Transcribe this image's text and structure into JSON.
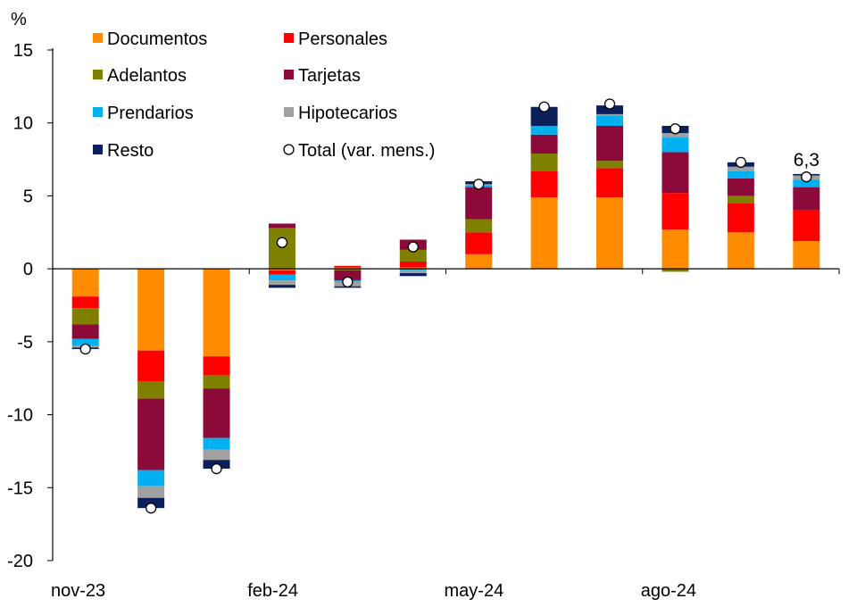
{
  "chart_data": {
    "type": "bar",
    "stacked": true,
    "ylabel": "%",
    "ylim": [
      -20,
      15
    ],
    "yticks": [
      "15",
      "10",
      "5",
      "0",
      "-5",
      "-10",
      "-15",
      "-20"
    ],
    "ytick_values": [
      15,
      10,
      5,
      0,
      -5,
      -10,
      -15,
      -20
    ],
    "categories": [
      "nov-23",
      "dic-23",
      "ene-24",
      "feb-24",
      "mar-24",
      "abr-24",
      "may-24",
      "jun-24",
      "jul-24",
      "ago-24",
      "sep-24",
      "oct-24"
    ],
    "xtick_labels": [
      {
        "index": 0,
        "label": "nov-23"
      },
      {
        "index": 3,
        "label": "feb-24"
      },
      {
        "index": 6,
        "label": "may-24"
      },
      {
        "index": 9,
        "label": "ago-24"
      }
    ],
    "series": [
      {
        "name": "Documentos",
        "color": "#FF8C00",
        "values": [
          -1.9,
          -5.6,
          -6.0,
          -0.1,
          0.1,
          0.1,
          1.0,
          4.9,
          4.9,
          2.7,
          2.5,
          1.9
        ]
      },
      {
        "name": "Personales",
        "color": "#FF0000",
        "values": [
          -0.8,
          -2.1,
          -1.3,
          -0.3,
          0.1,
          0.4,
          1.5,
          1.8,
          2.0,
          2.5,
          2.0,
          2.1
        ]
      },
      {
        "name": "Adelantos",
        "color": "#7F7F00",
        "values": [
          -1.1,
          -1.2,
          -0.9,
          2.8,
          -0.1,
          0.8,
          0.9,
          1.2,
          0.5,
          -0.2,
          0.5,
          0.0
        ]
      },
      {
        "name": "Tarjetas",
        "color": "#8B0A3A",
        "values": [
          -1.0,
          -4.9,
          -3.4,
          0.3,
          -0.7,
          0.7,
          2.2,
          1.3,
          2.4,
          2.8,
          1.2,
          1.6
        ]
      },
      {
        "name": "Prendarios",
        "color": "#00B0F0",
        "values": [
          -0.5,
          -1.1,
          -0.8,
          -0.4,
          -0.1,
          -0.1,
          0.1,
          0.6,
          0.7,
          1.0,
          0.5,
          0.5
        ]
      },
      {
        "name": "Hipotecarios",
        "color": "#A0A0A0",
        "values": [
          -0.1,
          -0.8,
          -0.7,
          -0.3,
          -0.3,
          -0.2,
          0.1,
          0.0,
          0.1,
          0.3,
          0.3,
          0.3
        ]
      },
      {
        "name": "Resto",
        "color": "#0B1F5B",
        "values": [
          -0.1,
          -0.7,
          -0.6,
          -0.2,
          -0.1,
          -0.2,
          0.2,
          1.3,
          0.6,
          0.5,
          0.3,
          0.1
        ]
      }
    ],
    "total": {
      "name": "Total (var. mens.)",
      "values": [
        -5.5,
        -16.4,
        -13.7,
        1.8,
        -0.9,
        1.5,
        5.8,
        11.1,
        11.3,
        9.6,
        7.3,
        6.3
      ]
    },
    "annotations": [
      {
        "index": 11,
        "text": "6,3"
      }
    ],
    "legend": {
      "position": "top",
      "entries": [
        "Documentos",
        "Personales",
        "Adelantos",
        "Tarjetas",
        "Prendarios",
        "Hipotecarios",
        "Resto",
        "Total (var. mens.)"
      ]
    }
  }
}
